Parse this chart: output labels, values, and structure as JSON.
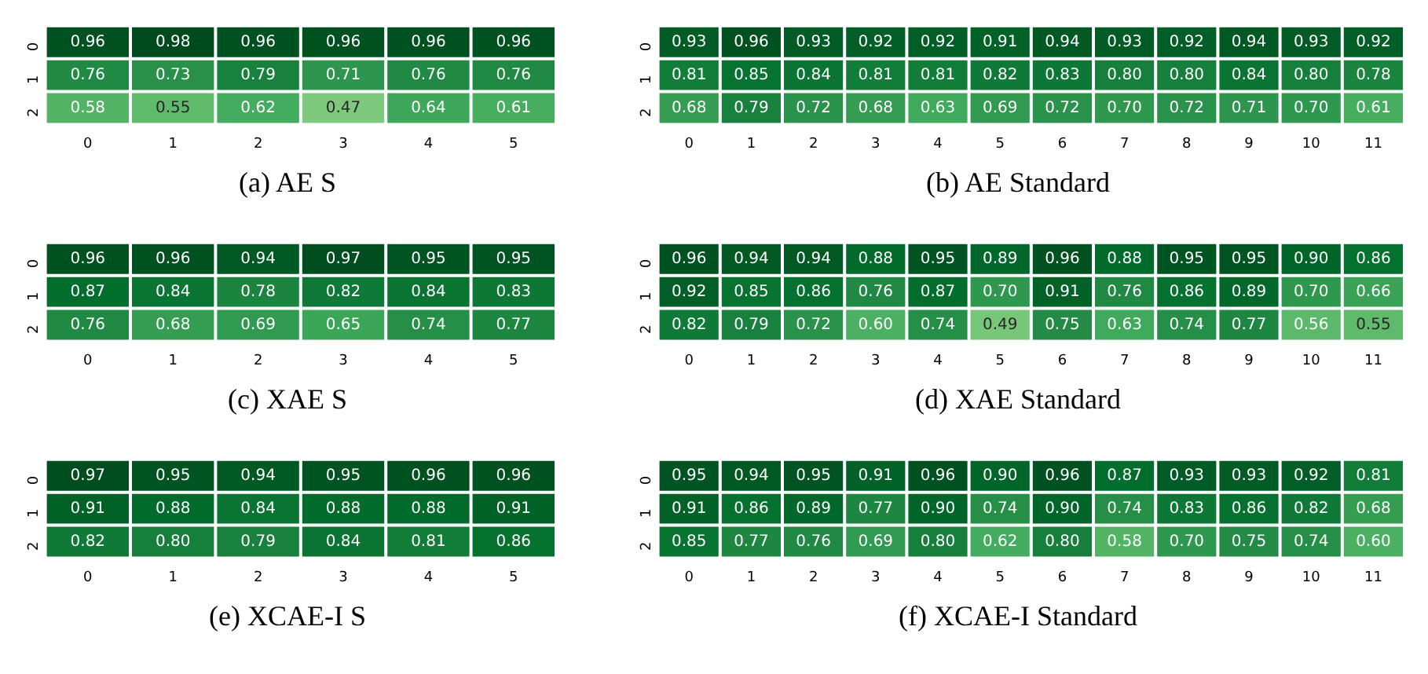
{
  "chart_data": [
    {
      "type": "heatmap",
      "title": "(a) AE S",
      "categories": [
        "0",
        "1",
        "2",
        "3",
        "4",
        "5"
      ],
      "y_categories": [
        "0",
        "1",
        "2"
      ],
      "cells": [
        [
          0.96,
          0.98,
          0.96,
          0.96,
          0.96,
          0.96
        ],
        [
          0.76,
          0.73,
          0.79,
          0.71,
          0.76,
          0.76
        ],
        [
          0.58,
          0.55,
          0.62,
          0.47,
          0.64,
          0.61
        ]
      ],
      "cell_labels": [
        [
          "0.96",
          "0.98",
          "0.96",
          "0.96",
          "0.96",
          "0.96"
        ],
        [
          "0.76",
          "0.73",
          "0.79",
          "0.71",
          "0.76",
          "0.76"
        ],
        [
          "0.58",
          "0.55",
          "0.62",
          "0.47",
          "0.64",
          "0.61"
        ]
      ]
    },
    {
      "type": "heatmap",
      "title": "(b) AE Standard",
      "categories": [
        "0",
        "1",
        "2",
        "3",
        "4",
        "5",
        "6",
        "7",
        "8",
        "9",
        "10",
        "11"
      ],
      "y_categories": [
        "0",
        "1",
        "2"
      ],
      "cells": [
        [
          0.93,
          0.96,
          0.93,
          0.92,
          0.92,
          0.91,
          0.94,
          0.93,
          0.92,
          0.94,
          0.93,
          0.92
        ],
        [
          0.81,
          0.85,
          0.84,
          0.81,
          0.81,
          0.82,
          0.83,
          0.8,
          0.8,
          0.84,
          0.8,
          0.78
        ],
        [
          0.68,
          0.79,
          0.72,
          0.68,
          0.63,
          0.69,
          0.72,
          0.7,
          0.72,
          0.71,
          0.7,
          0.61
        ]
      ],
      "cell_labels": [
        [
          "0.93",
          "0.96",
          "0.93",
          "0.92",
          "0.92",
          "0.91",
          "0.94",
          "0.93",
          "0.92",
          "0.94",
          "0.93",
          "0.92"
        ],
        [
          "0.81",
          "0.85",
          "0.84",
          "0.81",
          "0.81",
          "0.82",
          "0.83",
          "0.80",
          "0.80",
          "0.84",
          "0.80",
          "0.78"
        ],
        [
          "0.68",
          "0.79",
          "0.72",
          "0.68",
          "0.63",
          "0.69",
          "0.72",
          "0.70",
          "0.72",
          "0.71",
          "0.70",
          "0.61"
        ]
      ]
    },
    {
      "type": "heatmap",
      "title": "(c) XAE S",
      "categories": [
        "0",
        "1",
        "2",
        "3",
        "4",
        "5"
      ],
      "y_categories": [
        "0",
        "1",
        "2"
      ],
      "cells": [
        [
          0.96,
          0.96,
          0.94,
          0.97,
          0.95,
          0.95
        ],
        [
          0.87,
          0.84,
          0.78,
          0.82,
          0.84,
          0.83
        ],
        [
          0.76,
          0.68,
          0.69,
          0.65,
          0.74,
          0.77
        ]
      ],
      "cell_labels": [
        [
          "0.96",
          "0.96",
          "0.94",
          "0.97",
          "0.95",
          "0.95"
        ],
        [
          "0.87",
          "0.84",
          "0.78",
          "0.82",
          "0.84",
          "0.83"
        ],
        [
          "0.76",
          "0.68",
          "0.69",
          "0.65",
          "0.74",
          "0.77"
        ]
      ]
    },
    {
      "type": "heatmap",
      "title": "(d) XAE Standard",
      "categories": [
        "0",
        "1",
        "2",
        "3",
        "4",
        "5",
        "6",
        "7",
        "8",
        "9",
        "10",
        "11"
      ],
      "y_categories": [
        "0",
        "1",
        "2"
      ],
      "cells": [
        [
          0.96,
          0.94,
          0.94,
          0.88,
          0.95,
          0.89,
          0.96,
          0.88,
          0.95,
          0.95,
          0.9,
          0.86
        ],
        [
          0.92,
          0.85,
          0.86,
          0.76,
          0.87,
          0.7,
          0.91,
          0.76,
          0.86,
          0.89,
          0.7,
          0.66
        ],
        [
          0.82,
          0.79,
          0.72,
          0.6,
          0.74,
          0.49,
          0.75,
          0.63,
          0.74,
          0.77,
          0.56,
          0.55
        ]
      ],
      "cell_labels": [
        [
          "0.96",
          "0.94",
          "0.94",
          "0.88",
          "0.95",
          "0.89",
          "0.96",
          "0.88",
          "0.95",
          "0.95",
          "0.90",
          "0.86"
        ],
        [
          "0.92",
          "0.85",
          "0.86",
          "0.76",
          "0.87",
          "0.70",
          "0.91",
          "0.76",
          "0.86",
          "0.89",
          "0.70",
          "0.66"
        ],
        [
          "0.82",
          "0.79",
          "0.72",
          "0.60",
          "0.74",
          "0.49",
          "0.75",
          "0.63",
          "0.74",
          "0.77",
          "0.56",
          "0.55"
        ]
      ]
    },
    {
      "type": "heatmap",
      "title": "(e) XCAE-I S",
      "categories": [
        "0",
        "1",
        "2",
        "3",
        "4",
        "5"
      ],
      "y_categories": [
        "0",
        "1",
        "2"
      ],
      "cells": [
        [
          0.97,
          0.95,
          0.94,
          0.95,
          0.96,
          0.96
        ],
        [
          0.91,
          0.88,
          0.84,
          0.88,
          0.88,
          0.91
        ],
        [
          0.82,
          0.8,
          0.79,
          0.84,
          0.81,
          0.86
        ]
      ],
      "cell_labels": [
        [
          "0.97",
          "0.95",
          "0.94",
          "0.95",
          "0.96",
          "0.96"
        ],
        [
          "0.91",
          "0.88",
          "0.84",
          "0.88",
          "0.88",
          "0.91"
        ],
        [
          "0.82",
          "0.80",
          "0.79",
          "0.84",
          "0.81",
          "0.86"
        ]
      ]
    },
    {
      "type": "heatmap",
      "title": "(f) XCAE-I Standard",
      "categories": [
        "0",
        "1",
        "2",
        "3",
        "4",
        "5",
        "6",
        "7",
        "8",
        "9",
        "10",
        "11"
      ],
      "y_categories": [
        "0",
        "1",
        "2"
      ],
      "cells": [
        [
          0.95,
          0.94,
          0.95,
          0.91,
          0.96,
          0.9,
          0.96,
          0.87,
          0.93,
          0.93,
          0.92,
          0.81
        ],
        [
          0.91,
          0.86,
          0.89,
          0.77,
          0.9,
          0.74,
          0.9,
          0.74,
          0.83,
          0.86,
          0.82,
          0.68
        ],
        [
          0.85,
          0.77,
          0.76,
          0.69,
          0.8,
          0.62,
          0.8,
          0.58,
          0.7,
          0.75,
          0.74,
          0.6
        ]
      ],
      "cell_labels": [
        [
          "0.95",
          "0.94",
          "0.95",
          "0.91",
          "0.96",
          "0.90",
          "0.96",
          "0.87",
          "0.93",
          "0.93",
          "0.92",
          "0.81"
        ],
        [
          "0.91",
          "0.86",
          "0.89",
          "0.77",
          "0.90",
          "0.74",
          "0.90",
          "0.74",
          "0.83",
          "0.86",
          "0.82",
          "0.68"
        ],
        [
          "0.85",
          "0.77",
          "0.76",
          "0.69",
          "0.80",
          "0.62",
          "0.80",
          "0.58",
          "0.70",
          "0.75",
          "0.74",
          "0.60"
        ]
      ]
    }
  ]
}
